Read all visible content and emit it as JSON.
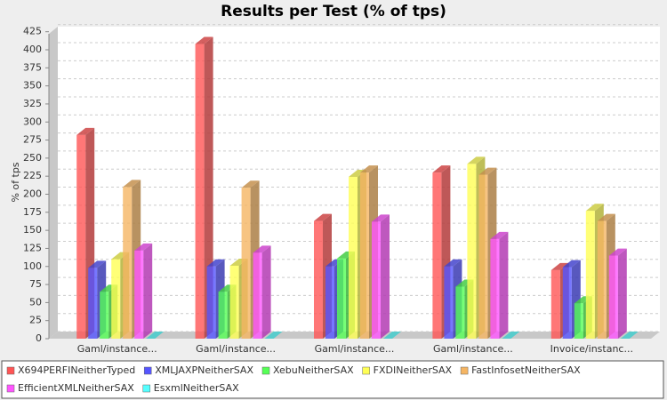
{
  "chart_data": {
    "type": "bar3d",
    "title": "Results per Test (% of tps)",
    "y_label": "% of tps",
    "categories": [
      "Gaml/instance...",
      "Gaml/instance...",
      "Gaml/instance...",
      "Gaml/instance...",
      "Invoice/instanc..."
    ],
    "series": [
      {
        "name": "X694PERFINeitherTyped",
        "color": "#ff5555",
        "values": [
          282,
          408,
          163,
          230,
          95
        ]
      },
      {
        "name": "XMLJAXPNeitherSAX",
        "color": "#5555ff",
        "values": [
          98,
          100,
          100,
          100,
          99
        ]
      },
      {
        "name": "XebuNeitherSAX",
        "color": "#55ff55",
        "values": [
          65,
          65,
          111,
          72,
          49
        ]
      },
      {
        "name": "FXDINeitherSAX",
        "color": "#ffff55",
        "values": [
          110,
          101,
          224,
          242,
          177
        ]
      },
      {
        "name": "FastInfosetNeitherSAX",
        "color": "#f5b563",
        "values": [
          210,
          209,
          230,
          227,
          163
        ]
      },
      {
        "name": "EfficientXMLNeitherSAX",
        "color": "#ff55ff",
        "values": [
          122,
          119,
          162,
          138,
          115
        ]
      },
      {
        "name": "EsxmlNeitherSAX",
        "color": "#55ffff",
        "values": [
          0,
          0,
          0,
          0,
          0
        ]
      }
    ],
    "ylim": [
      0,
      432
    ],
    "yticks": [
      0,
      25,
      50,
      75,
      100,
      125,
      150,
      175,
      200,
      225,
      250,
      275,
      300,
      325,
      350,
      375,
      400,
      425
    ],
    "grid": true
  }
}
